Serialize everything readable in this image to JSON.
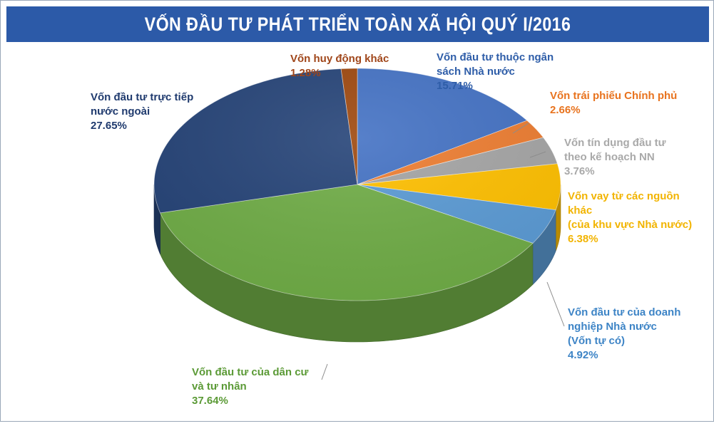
{
  "title": "VỐN ĐẦU TƯ PHÁT TRIỂN TOÀN XÃ HỘI QUÝ I/2016",
  "chart_data": {
    "type": "pie",
    "style": "3d",
    "title": "VỐN ĐẦU TƯ PHÁT TRIỂN TOÀN XÃ HỘI QUÝ I/2016",
    "start_category": "Vốn đầu tư thuộc ngân sách Nhà nước",
    "direction": "clockwise",
    "slices": [
      {
        "label_lines": [
          "Vốn đầu tư thuộc ngân",
          "sách Nhà nước"
        ],
        "value_label": "15.71%",
        "value": 15.71,
        "color": "#4472c4",
        "text_color": "#2e5da8"
      },
      {
        "label_lines": [
          "Vốn trái phiếu Chính phủ"
        ],
        "value_label": "2.66%",
        "value": 2.66,
        "color": "#ed7d31",
        "text_color": "#e8731e"
      },
      {
        "label_lines": [
          "Vốn tín dụng đầu tư",
          "theo kế hoạch NN"
        ],
        "value_label": "3.76%",
        "value": 3.76,
        "color": "#a5a5a5",
        "text_color": "#a9a9a9"
      },
      {
        "label_lines": [
          "Vốn vay từ các nguồn",
          "khác",
          "(của khu vực Nhà nước)"
        ],
        "value_label": "6.38%",
        "value": 6.38,
        "color": "#ffc000",
        "text_color": "#f2b400"
      },
      {
        "label_lines": [
          "Vốn đầu tư của doanh",
          "nghiệp Nhà nước",
          "(Vốn tự có)"
        ],
        "value_label": "4.92%",
        "value": 4.92,
        "color": "#5b9bd5",
        "text_color": "#3d84c6"
      },
      {
        "label_lines": [
          "Vốn đầu tư của dân cư",
          "và tư nhân"
        ],
        "value_label": "37.64%",
        "value": 37.64,
        "color": "#70ad47",
        "text_color": "#5b9a36"
      },
      {
        "label_lines": [
          "Vốn đầu tư trực tiếp",
          "nước ngoài"
        ],
        "value_label": "27.65%",
        "value": 27.65,
        "color": "#264478",
        "text_color": "#1f3a6e"
      },
      {
        "label_lines": [
          "Vốn huy động khác"
        ],
        "value_label": "1.28%",
        "value": 1.28,
        "color": "#9e480e",
        "text_color": "#a0461a"
      }
    ]
  }
}
